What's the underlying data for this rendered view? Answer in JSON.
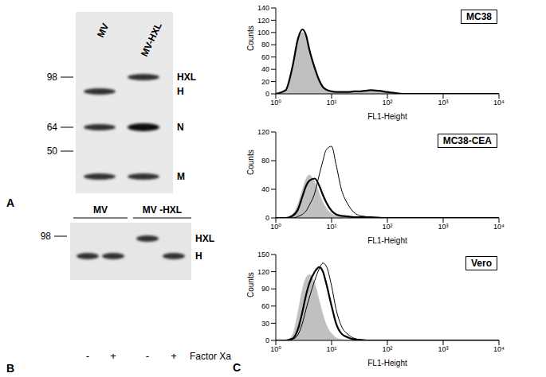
{
  "blot_a": {
    "label": "A",
    "lanes": [
      {
        "label": "MV",
        "bands": [
          "H",
          "N",
          "M"
        ]
      },
      {
        "label": "MV-HXL",
        "bands": [
          "HXL",
          "N",
          "M"
        ]
      }
    ],
    "band_labels": [
      "HXL",
      "H",
      "N",
      "M"
    ],
    "markers": [
      98,
      64,
      50
    ]
  },
  "blot_b": {
    "label": "B",
    "groups": [
      {
        "label": "MV",
        "lanes": [
          {
            "treatment": "-",
            "bands": [
              "H"
            ]
          },
          {
            "treatment": "+",
            "bands": [
              "H"
            ]
          }
        ]
      },
      {
        "label": "MV -HXL",
        "lanes": [
          {
            "treatment": "-",
            "bands": [
              "HXL"
            ]
          },
          {
            "treatment": "+",
            "bands": [
              "H"
            ]
          }
        ]
      }
    ],
    "treatment_label": "Factor Xa",
    "band_labels": [
      "HXL",
      "H"
    ],
    "markers": [
      98
    ]
  },
  "panel_c_label": "C",
  "chart_data": [
    {
      "type": "line",
      "title": "MC38",
      "x_label": "FL1-Height",
      "y_label": "Counts",
      "log": "x",
      "x": [
        1,
        1.5,
        2,
        2.5,
        3,
        3.5,
        4,
        5,
        6,
        7,
        8,
        10,
        12,
        15,
        20,
        25,
        30,
        40,
        50,
        70,
        100,
        150,
        200,
        300,
        500,
        1000,
        10000
      ],
      "series": [
        {
          "type": "area",
          "color": "#c0c0c0",
          "values": [
            0,
            5,
            40,
            85,
            100,
            90,
            70,
            40,
            20,
            10,
            6,
            3,
            2,
            2,
            2,
            3,
            3,
            4,
            4,
            4,
            2,
            1,
            0,
            0,
            0,
            0,
            0
          ]
        },
        {
          "type": "line",
          "color": "#000000",
          "line_style": "thick",
          "values": [
            0,
            6,
            45,
            90,
            105,
            95,
            72,
            42,
            22,
            11,
            7,
            4,
            3,
            3,
            3,
            4,
            4,
            5,
            6,
            5,
            3,
            1,
            0,
            0,
            0,
            0,
            0
          ]
        }
      ],
      "xlim": [
        1,
        10000
      ],
      "xticks": [
        {
          "value": 1,
          "label": "10⁰"
        },
        {
          "value": 10,
          "label": "10¹"
        },
        {
          "value": 100,
          "label": "10²"
        },
        {
          "value": 1000,
          "label": "10³"
        },
        {
          "value": 10000,
          "label": "10⁴"
        }
      ],
      "ylim": [
        0,
        140
      ],
      "yticks": [
        0,
        20,
        40,
        60,
        80,
        100,
        120,
        140
      ]
    },
    {
      "type": "line",
      "title": "MC38-CEA",
      "x_label": "FL1-Height",
      "y_label": "Counts",
      "log": "x",
      "x": [
        1,
        1.5,
        2,
        2.5,
        3,
        3.5,
        4,
        5,
        6,
        7,
        8,
        10,
        12,
        15,
        20,
        25,
        30,
        40,
        50,
        70,
        100,
        150,
        200,
        300,
        500,
        1000,
        10000
      ],
      "series": [
        {
          "type": "area",
          "color": "#c0c0c0",
          "values": [
            0,
            0,
            5,
            20,
            40,
            55,
            60,
            50,
            35,
            22,
            14,
            6,
            3,
            2,
            1,
            1,
            0,
            0,
            0,
            0,
            0,
            0,
            0,
            0,
            0,
            0,
            0
          ]
        },
        {
          "type": "line",
          "color": "#000000",
          "line_style": "thick",
          "values": [
            0,
            0,
            3,
            12,
            30,
            45,
            52,
            55,
            45,
            32,
            22,
            10,
            5,
            3,
            2,
            1,
            1,
            1,
            1,
            0,
            0,
            0,
            0,
            0,
            0,
            0,
            0
          ]
        },
        {
          "type": "line",
          "color": "#000000",
          "line_style": "thin",
          "values": [
            0,
            0,
            0,
            2,
            5,
            10,
            18,
            35,
            60,
            80,
            95,
            100,
            75,
            40,
            18,
            8,
            4,
            2,
            1,
            1,
            0,
            0,
            0,
            0,
            0,
            0,
            0
          ]
        }
      ],
      "xlim": [
        1,
        10000
      ],
      "xticks": [
        {
          "value": 1,
          "label": "10⁰"
        },
        {
          "value": 10,
          "label": "10¹"
        },
        {
          "value": 100,
          "label": "10²"
        },
        {
          "value": 1000,
          "label": "10³"
        },
        {
          "value": 10000,
          "label": "10⁴"
        }
      ],
      "ylim": [
        0,
        120
      ],
      "yticks": [
        0,
        40,
        80,
        120
      ]
    },
    {
      "type": "line",
      "title": "Vero",
      "x_label": "FL1-Height",
      "y_label": "Counts",
      "log": "x",
      "x": [
        1,
        1.5,
        2,
        2.5,
        3,
        3.5,
        4,
        5,
        6,
        7,
        8,
        10,
        12,
        15,
        20,
        25,
        30,
        40,
        50,
        70,
        100,
        150,
        200,
        300,
        500,
        1000,
        10000
      ],
      "series": [
        {
          "type": "area",
          "color": "#c0c0c0",
          "values": [
            0,
            0,
            10,
            50,
            90,
            110,
            115,
            100,
            70,
            45,
            28,
            12,
            5,
            2,
            1,
            0,
            0,
            0,
            0,
            0,
            0,
            0,
            0,
            0,
            0,
            0,
            0
          ]
        },
        {
          "type": "line",
          "color": "#000000",
          "line_style": "thick",
          "values": [
            0,
            0,
            3,
            20,
            50,
            80,
            100,
            120,
            128,
            120,
            100,
            60,
            30,
            12,
            5,
            2,
            1,
            0,
            0,
            0,
            0,
            0,
            0,
            0,
            0,
            0,
            0
          ]
        },
        {
          "type": "line",
          "color": "#000000",
          "line_style": "thin",
          "values": [
            0,
            0,
            2,
            10,
            30,
            55,
            75,
            105,
            125,
            135,
            130,
            95,
            55,
            25,
            10,
            4,
            2,
            1,
            0,
            0,
            0,
            0,
            0,
            0,
            0,
            0,
            0
          ]
        }
      ],
      "xlim": [
        1,
        10000
      ],
      "xticks": [
        {
          "value": 1,
          "label": "10⁰"
        },
        {
          "value": 10,
          "label": "10¹"
        },
        {
          "value": 100,
          "label": "10²"
        },
        {
          "value": 1000,
          "label": "10³"
        },
        {
          "value": 10000,
          "label": "10⁴"
        }
      ],
      "ylim": [
        0,
        150
      ],
      "yticks": [
        0,
        30,
        60,
        90,
        120,
        150
      ]
    }
  ]
}
